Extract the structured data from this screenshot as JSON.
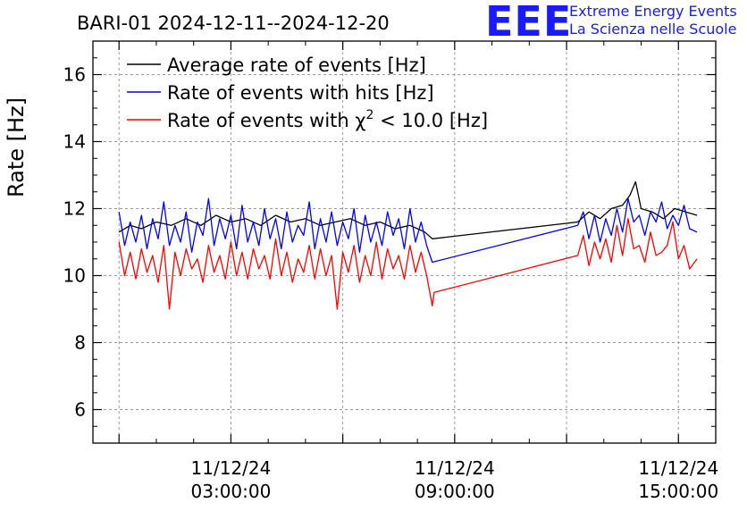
{
  "chart_data": {
    "type": "line",
    "title": "BARI-01 2024-12-11--2024-12-20",
    "xlabel": "",
    "ylabel": "Rate [Hz]",
    "ylim": [
      5,
      17
    ],
    "yticks": [
      6,
      8,
      10,
      12,
      14,
      16
    ],
    "xlim_hours": [
      -0.7,
      16.0
    ],
    "xticks": [
      {
        "hour": 3,
        "date": "11/12/24",
        "time": "03:00:00"
      },
      {
        "hour": 9,
        "date": "11/12/24",
        "time": "09:00:00"
      },
      {
        "hour": 15,
        "date": "11/12/24",
        "time": "15:00:00"
      }
    ],
    "grid": true,
    "legend_position": "top-left",
    "series": [
      {
        "name": "Average rate of events [Hz]",
        "color": "#000000",
        "segments": [
          {
            "x": [
              0.0,
              0.3,
              0.6,
              1.0,
              1.4,
              1.8,
              2.2,
              2.6,
              3.0,
              3.4,
              3.8,
              4.2,
              4.6,
              5.0,
              5.4,
              5.8,
              6.2,
              6.6,
              7.0,
              7.4,
              7.8,
              8.2,
              8.4,
              12.3
            ],
            "y": [
              11.3,
              11.5,
              11.4,
              11.6,
              11.5,
              11.7,
              11.5,
              11.8,
              11.6,
              11.7,
              11.5,
              11.8,
              11.6,
              11.7,
              11.5,
              11.6,
              11.7,
              11.5,
              11.6,
              11.4,
              11.5,
              11.3,
              11.1,
              11.6
            ]
          },
          {
            "x": [
              12.3,
              12.6,
              12.9,
              13.2,
              13.5,
              13.7,
              13.85,
              14.0,
              14.3,
              14.6,
              14.9,
              15.2,
              15.5
            ],
            "y": [
              11.6,
              11.9,
              11.7,
              12.0,
              12.1,
              12.4,
              12.8,
              12.0,
              11.9,
              11.7,
              12.0,
              11.9,
              11.8
            ]
          }
        ]
      },
      {
        "name": "Rate of events with hits [Hz]",
        "color": "#0000ff",
        "segments": [
          {
            "x": [
              0.0,
              0.15,
              0.3,
              0.45,
              0.6,
              0.75,
              0.9,
              1.05,
              1.2,
              1.35,
              1.5,
              1.65,
              1.8,
              1.95,
              2.1,
              2.25,
              2.4,
              2.55,
              2.7,
              2.85,
              3.0,
              3.15,
              3.3,
              3.45,
              3.6,
              3.75,
              3.9,
              4.05,
              4.2,
              4.35,
              4.5,
              4.65,
              4.8,
              4.95,
              5.1,
              5.25,
              5.4,
              5.55,
              5.7,
              5.85,
              6.0,
              6.15,
              6.3,
              6.45,
              6.6,
              6.75,
              6.9,
              7.05,
              7.2,
              7.35,
              7.5,
              7.65,
              7.8,
              7.95,
              8.1,
              8.25,
              8.4,
              12.3
            ],
            "y": [
              11.9,
              10.9,
              11.6,
              11.0,
              11.8,
              10.8,
              11.7,
              11.1,
              12.2,
              10.9,
              11.5,
              11.0,
              11.9,
              10.7,
              11.6,
              11.2,
              12.3,
              10.9,
              11.7,
              11.1,
              11.8,
              10.8,
              12.1,
              11.0,
              11.6,
              10.9,
              12.0,
              11.1,
              11.7,
              10.8,
              11.9,
              11.0,
              11.5,
              11.2,
              12.2,
              10.8,
              11.7,
              11.0,
              11.9,
              10.9,
              11.6,
              11.1,
              12.0,
              10.7,
              11.8,
              11.0,
              11.6,
              10.9,
              11.9,
              11.2,
              11.7,
              10.8,
              12.0,
              11.0,
              11.6,
              10.9,
              10.4,
              11.5
            ]
          },
          {
            "x": [
              12.3,
              12.45,
              12.6,
              12.75,
              12.9,
              13.05,
              13.2,
              13.35,
              13.5,
              13.65,
              13.8,
              13.95,
              14.1,
              14.25,
              14.4,
              14.55,
              14.7,
              14.85,
              15.0,
              15.15,
              15.3,
              15.5
            ],
            "y": [
              11.5,
              11.9,
              11.1,
              11.8,
              11.0,
              11.7,
              11.2,
              12.0,
              11.3,
              12.3,
              11.6,
              11.8,
              11.2,
              11.9,
              11.6,
              12.2,
              11.4,
              11.8,
              11.5,
              12.1,
              11.4,
              11.3
            ]
          }
        ]
      },
      {
        "name": "Rate of events with χ² < 10.0 [Hz]",
        "color": "#ff0000",
        "segments": [
          {
            "x": [
              0.0,
              0.15,
              0.3,
              0.45,
              0.6,
              0.75,
              0.9,
              1.05,
              1.2,
              1.35,
              1.5,
              1.65,
              1.8,
              1.95,
              2.1,
              2.25,
              2.4,
              2.55,
              2.7,
              2.85,
              3.0,
              3.15,
              3.3,
              3.45,
              3.6,
              3.75,
              3.9,
              4.05,
              4.2,
              4.35,
              4.5,
              4.65,
              4.8,
              4.95,
              5.1,
              5.25,
              5.4,
              5.55,
              5.7,
              5.85,
              6.0,
              6.15,
              6.3,
              6.45,
              6.6,
              6.75,
              6.9,
              7.05,
              7.2,
              7.35,
              7.5,
              7.65,
              7.8,
              7.95,
              8.1,
              8.25,
              8.4,
              8.45,
              12.3
            ],
            "y": [
              11.0,
              10.0,
              10.7,
              9.9,
              10.8,
              10.1,
              10.6,
              9.8,
              10.9,
              9.0,
              10.7,
              10.0,
              10.8,
              10.2,
              10.5,
              9.8,
              10.9,
              10.1,
              10.6,
              9.9,
              11.0,
              10.0,
              10.7,
              9.9,
              10.8,
              10.2,
              10.6,
              9.9,
              11.1,
              10.0,
              10.7,
              9.8,
              10.5,
              10.1,
              10.9,
              9.9,
              10.8,
              10.0,
              10.6,
              9.0,
              10.7,
              10.1,
              10.9,
              9.8,
              10.6,
              10.0,
              11.0,
              9.9,
              10.8,
              10.2,
              10.6,
              9.9,
              10.9,
              10.1,
              10.7,
              10.0,
              9.1,
              9.5,
              10.6
            ]
          },
          {
            "x": [
              12.3,
              12.45,
              12.6,
              12.75,
              12.9,
              13.05,
              13.2,
              13.35,
              13.5,
              13.65,
              13.8,
              13.95,
              14.1,
              14.25,
              14.4,
              14.55,
              14.7,
              14.85,
              15.0,
              15.15,
              15.3,
              15.5
            ],
            "y": [
              10.6,
              11.2,
              10.3,
              11.0,
              10.5,
              11.1,
              10.4,
              11.5,
              10.6,
              11.7,
              10.8,
              10.9,
              10.4,
              11.3,
              10.6,
              10.7,
              10.9,
              11.6,
              10.5,
              10.9,
              10.2,
              10.5
            ]
          }
        ]
      }
    ]
  },
  "logo": {
    "mark": "EEE",
    "line1": "Extreme Energy Events",
    "line2": "La Scienza nelle Scuole"
  },
  "legend_chi": {
    "prefix": "Rate of events with χ",
    "sup": "2",
    "suffix": " < 10.0 [Hz]"
  }
}
